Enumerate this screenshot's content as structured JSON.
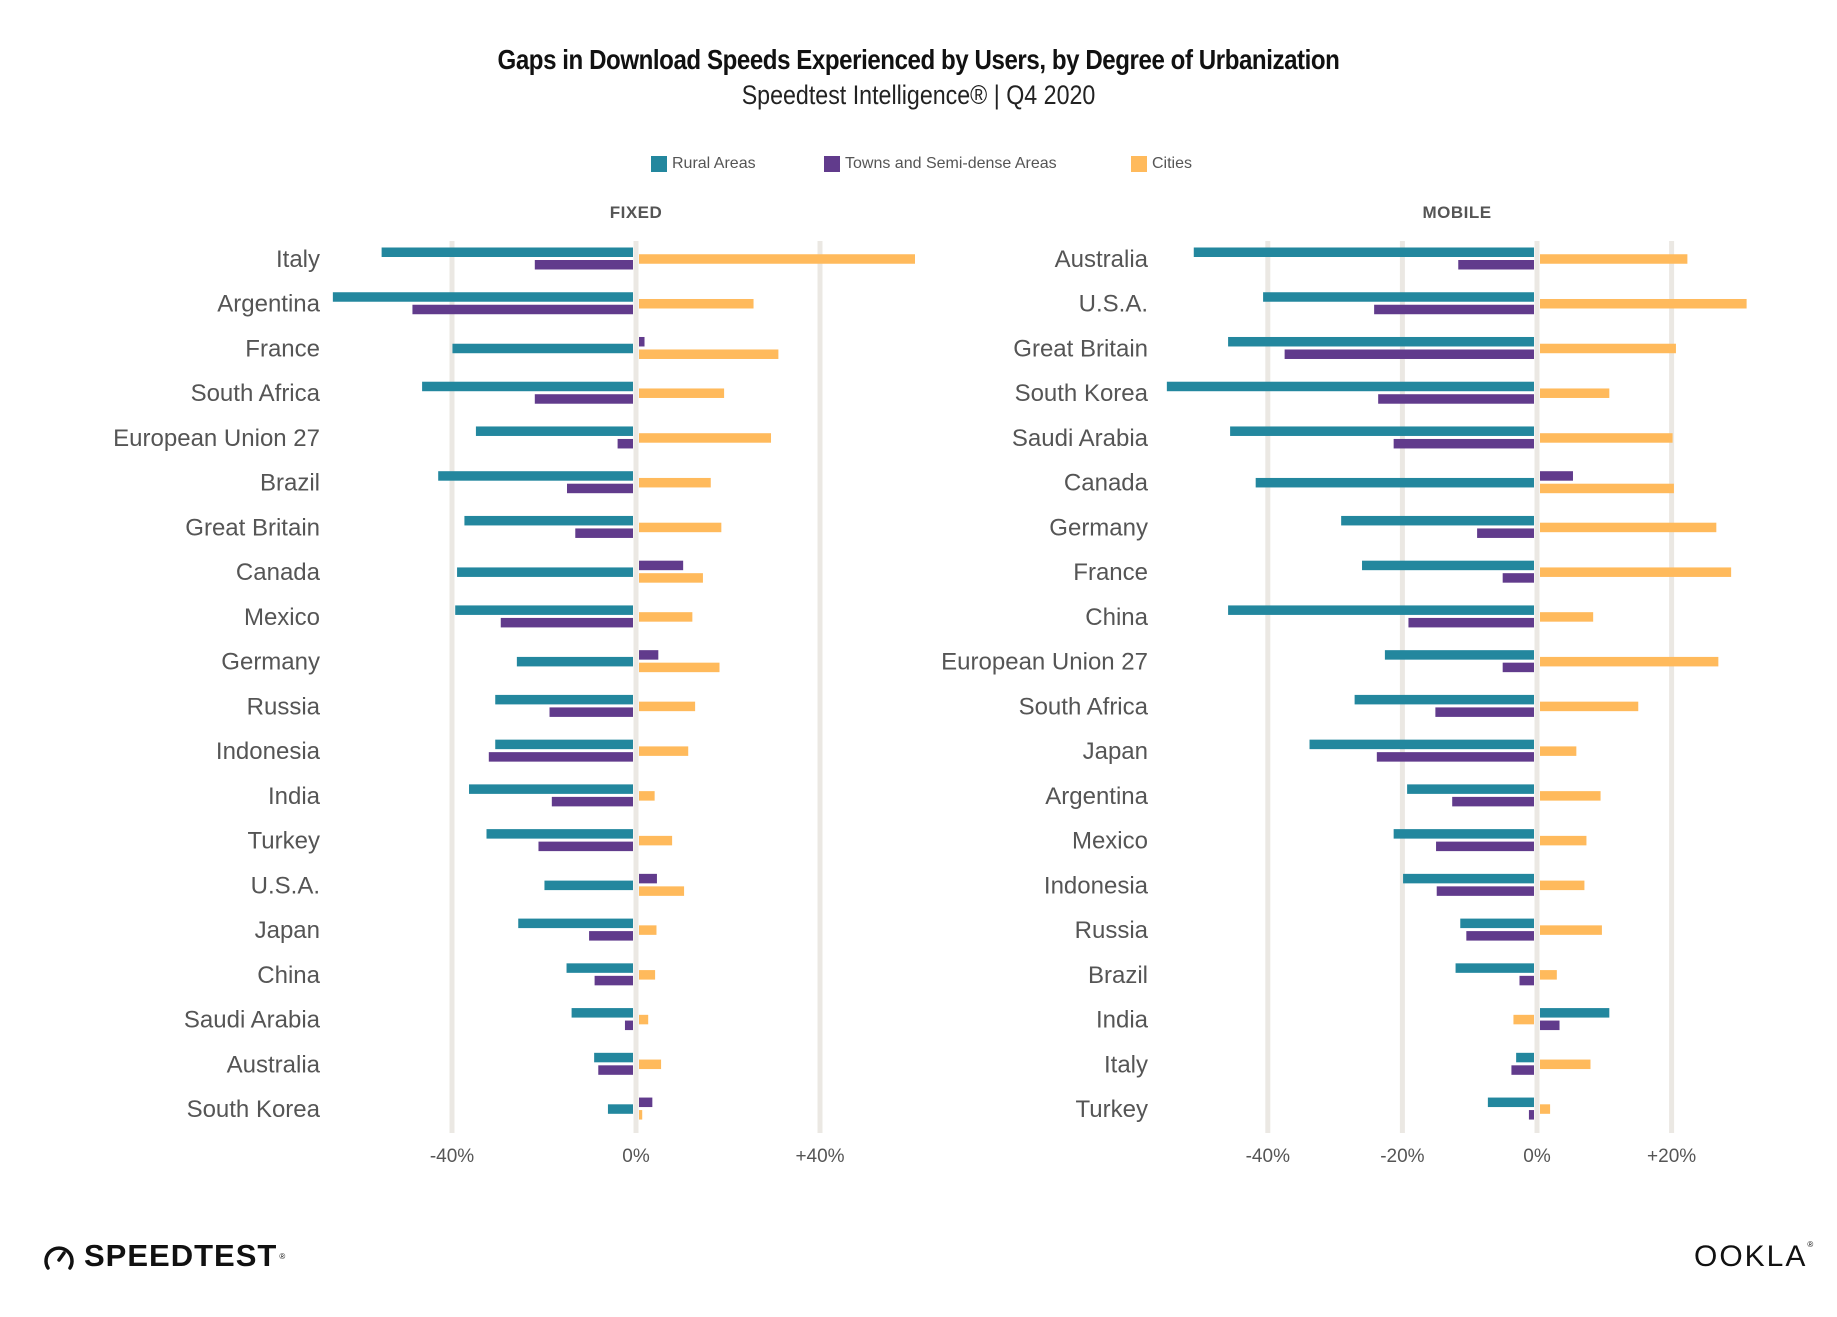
{
  "header": {
    "title": "Gaps in Download Speeds Experienced by Users, by Degree of Urbanization",
    "subtitle": "Speedtest Intelligence® | Q4 2020"
  },
  "legend": [
    {
      "label": "Rural Areas",
      "color": "#23879e"
    },
    {
      "label": "Towns and Semi-dense Areas",
      "color": "#613b8c"
    },
    {
      "label": "Cities",
      "color": "#ffba5c"
    }
  ],
  "logos": {
    "speedtest": "SPEEDTEST",
    "ookla": "OOKLA",
    "registered": "®"
  },
  "chart_data": [
    {
      "type": "bar",
      "orientation": "horizontal",
      "title": "FIXED",
      "xlabel": "",
      "ylabel": "",
      "xlim": [
        -66,
        62
      ],
      "ticks": [
        -40,
        0,
        40
      ],
      "tick_labels": [
        "-40%",
        "0%",
        "+40%"
      ],
      "grid": true,
      "legend_position": "top-center",
      "categories": [
        "Italy",
        "Argentina",
        "France",
        "South Africa",
        "European Union 27",
        "Brazil",
        "Great Britain",
        "Canada",
        "Mexico",
        "Germany",
        "Russia",
        "Indonesia",
        "India",
        "Turkey",
        "U.S.A.",
        "Japan",
        "China",
        "Saudi Arabia",
        "Australia",
        "South Korea"
      ],
      "series": [
        {
          "name": "Rural Areas",
          "color": "#23879e",
          "values": [
            -55.3,
            -65.9,
            -39.9,
            -46.5,
            -34.8,
            -43.0,
            -37.3,
            -38.9,
            -39.3,
            -25.9,
            -30.6,
            -30.6,
            -36.3,
            -32.5,
            -19.9,
            -25.6,
            -15.1,
            -14.0,
            -9.1,
            -6.1
          ]
        },
        {
          "name": "Towns and Semi-dense Areas",
          "color": "#613b8c",
          "values": [
            -22.0,
            -48.6,
            1.2,
            -22.0,
            -4.0,
            -15.0,
            -13.2,
            9.6,
            -29.4,
            4.2,
            -18.8,
            -32.0,
            -18.3,
            -21.2,
            3.9,
            -10.2,
            -9.0,
            -2.4,
            -8.2,
            2.9
          ]
        },
        {
          "name": "Cities",
          "color": "#ffba5c",
          "values": [
            60.0,
            24.9,
            30.3,
            18.5,
            28.7,
            15.6,
            17.9,
            13.9,
            11.6,
            17.5,
            12.2,
            10.7,
            3.4,
            7.2,
            9.8,
            3.8,
            3.5,
            2.0,
            4.8,
            0.7
          ]
        }
      ]
    },
    {
      "type": "bar",
      "orientation": "horizontal",
      "title": "MOBILE",
      "xlabel": "",
      "ylabel": "",
      "xlim": [
        -56,
        32
      ],
      "ticks": [
        -40,
        -20,
        0,
        20
      ],
      "tick_labels": [
        "-40%",
        "-20%",
        "0%",
        "+20%"
      ],
      "grid": true,
      "legend_position": "top-center",
      "categories": [
        "Australia",
        "U.S.A.",
        "Great Britain",
        "South Korea",
        "Saudi Arabia",
        "Canada",
        "Germany",
        "France",
        "China",
        "European Union 27",
        "South Africa",
        "Japan",
        "Argentina",
        "Mexico",
        "Indonesia",
        "Russia",
        "Brazil",
        "India",
        "Italy",
        "Turkey"
      ],
      "series": [
        {
          "name": "Rural Areas",
          "color": "#23879e",
          "values": [
            -51.0,
            -40.7,
            -45.9,
            -55.0,
            -45.6,
            -41.8,
            -29.1,
            -26.0,
            -45.9,
            -22.6,
            -27.1,
            -33.8,
            -19.3,
            -21.3,
            -19.9,
            -11.4,
            -12.1,
            10.3,
            -3.1,
            -7.3
          ]
        },
        {
          "name": "Towns and Semi-dense Areas",
          "color": "#613b8c",
          "values": [
            -11.7,
            -24.2,
            -37.5,
            -23.6,
            -21.3,
            4.9,
            -8.9,
            -5.1,
            -19.1,
            -5.1,
            -15.1,
            -23.8,
            -12.6,
            -15.0,
            -14.9,
            -10.5,
            -2.6,
            2.9,
            -3.8,
            -1.2
          ]
        },
        {
          "name": "Cities",
          "color": "#ffba5c",
          "values": [
            21.9,
            30.7,
            20.2,
            10.3,
            19.7,
            19.9,
            26.2,
            28.4,
            7.9,
            26.5,
            14.6,
            5.4,
            9.0,
            6.9,
            6.6,
            9.2,
            2.5,
            -3.5,
            7.5,
            1.5
          ]
        }
      ]
    }
  ]
}
